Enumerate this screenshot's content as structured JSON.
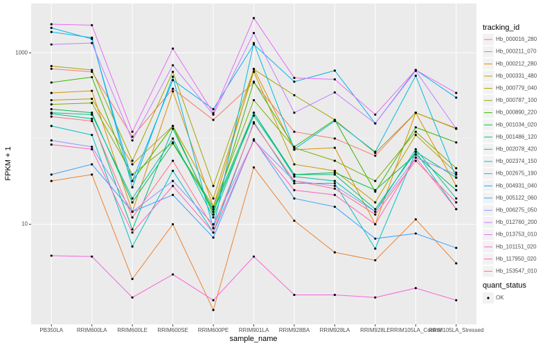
{
  "chart_data": {
    "type": "line",
    "x_label": "sample_name",
    "y_label": "FPKM + 1",
    "categories": [
      "PB350LA",
      "RRIM600LA",
      "RRIM600LE",
      "RRIM600SE",
      "RRIM600PE",
      "RRIM901LA",
      "RRIM928BA",
      "RRIM928LA",
      "RRIM928LE",
      "RRIM105LA_Control",
      "RRIM105LA_Stressed"
    ],
    "log_y": true,
    "ylim": [
      0.68,
      3760
    ],
    "yticks": [
      10,
      1000
    ],
    "grid": true,
    "legend_title": "tracking_id",
    "legend_position": "right",
    "point_color": "#000000",
    "shape_legend": {
      "title": "quant_status",
      "items": [
        "OK"
      ]
    },
    "series": [
      {
        "name": "Hb_000016_280",
        "color": "#F8766D",
        "values": [
          650,
          600,
          105,
          380,
          165,
          450,
          120,
          100,
          63,
          200,
          132
        ]
      },
      {
        "name": "Hb_000211_070",
        "color": "#EA8331",
        "values": [
          32,
          38,
          2.3,
          10,
          1.0,
          46,
          11,
          4.7,
          3.8,
          11.4,
          3.5
        ]
      },
      {
        "name": "Hb_000212_280",
        "color": "#D89000",
        "values": [
          340,
          360,
          14,
          355,
          16,
          650,
          74,
          78,
          10,
          200,
          28
        ]
      },
      {
        "name": "Hb_000331_480",
        "color": "#C09B00",
        "values": [
          280,
          290,
          50,
          140,
          20,
          600,
          50,
          42,
          18,
          110,
          40
        ]
      },
      {
        "name": "Hb_000779_040",
        "color": "#A3A500",
        "values": [
          700,
          630,
          55,
          600,
          28,
          640,
          320,
          165,
          68,
          200,
          130
        ]
      },
      {
        "name": "Hb_000787_100",
        "color": "#7CAE00",
        "values": [
          250,
          260,
          38,
          90,
          16,
          280,
          78,
          55,
          32,
          120,
          45
        ]
      },
      {
        "name": "Hb_000890_220",
        "color": "#39B600",
        "values": [
          450,
          520,
          32,
          140,
          13,
          460,
          80,
          165,
          24,
          135,
          90
        ]
      },
      {
        "name": "Hb_001034_020",
        "color": "#00BB4E",
        "values": [
          220,
          200,
          18,
          88,
          15,
          200,
          38,
          40,
          25,
          65,
          25
        ]
      },
      {
        "name": "Hb_001486_120",
        "color": "#00BF7D",
        "values": [
          195,
          170,
          8.7,
          130,
          14,
          185,
          38,
          38,
          15,
          70,
          35
        ]
      },
      {
        "name": "Hb_002078_420",
        "color": "#00C1A3",
        "values": [
          200,
          190,
          20,
          100,
          12,
          200,
          36,
          32,
          14,
          75,
          20
        ]
      },
      {
        "name": "Hb_002374_150",
        "color": "#00BFC4",
        "values": [
          140,
          110,
          5.5,
          42,
          8,
          155,
          30,
          30,
          5.2,
          70,
          15
        ]
      },
      {
        "name": "Hb_002675_190",
        "color": "#00BAE0",
        "values": [
          1750,
          1500,
          27,
          525,
          9,
          1300,
          75,
          160,
          70,
          540,
          35
        ]
      },
      {
        "name": "Hb_004931_040",
        "color": "#00B0F6",
        "values": [
          1950,
          1450,
          32,
          480,
          220,
          1250,
          460,
          620,
          150,
          630,
          300
        ]
      },
      {
        "name": "Hb_005122_060",
        "color": "#35A2FF",
        "values": [
          38,
          50,
          14,
          22,
          7,
          98,
          20,
          16,
          6.8,
          7.8,
          5.3
        ]
      },
      {
        "name": "Hb_006275_050",
        "color": "#9590FF",
        "values": [
          95,
          80,
          14,
          32,
          10,
          95,
          32,
          28,
          14,
          60,
          38
        ]
      },
      {
        "name": "Hb_012760_200",
        "color": "#C77CFF",
        "values": [
          1250,
          1300,
          95,
          715,
          190,
          1700,
          200,
          345,
          150,
          615,
          130
        ]
      },
      {
        "name": "Hb_013753_010",
        "color": "#E76BF3",
        "values": [
          2150,
          2100,
          120,
          1120,
          198,
          2540,
          510,
          490,
          190,
          630,
          340
        ]
      },
      {
        "name": "Hb_101151_020",
        "color": "#FA62DB",
        "values": [
          4.3,
          4.2,
          1.4,
          2.6,
          1.3,
          4.2,
          1.5,
          1.5,
          1.4,
          1.8,
          1.3
        ]
      },
      {
        "name": "Hb_117950_020",
        "color": "#FF62BC",
        "values": [
          85,
          75,
          8,
          28,
          8,
          95,
          25,
          22,
          10,
          60,
          15
        ]
      },
      {
        "name": "Hb_153547_010",
        "color": "#FF6C91",
        "values": [
          180,
          160,
          12,
          55,
          9,
          150,
          32,
          26,
          13,
          55,
          18
        ]
      }
    ]
  }
}
